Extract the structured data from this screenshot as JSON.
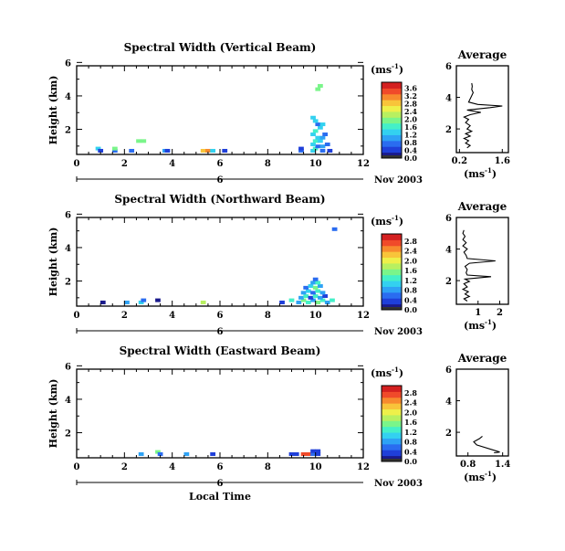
{
  "colors": {
    "colormap": [
      "#1a1a8c",
      "#1f3fd9",
      "#2a6cf0",
      "#2ea2f5",
      "#33d1f0",
      "#44f0c8",
      "#7af58a",
      "#b8f060",
      "#eef04a",
      "#f8c43a",
      "#f78a2e",
      "#f04a2a",
      "#d42020"
    ],
    "line": "#000000",
    "background": "#ffffff"
  },
  "xlabel": "Local Time",
  "chart_data": [
    {
      "type": "heatmap",
      "title": "Spectral Width (Vertical Beam)",
      "ylabel": "Height (km)",
      "xlim": [
        0,
        12
      ],
      "ylim": [
        0.5,
        5.8
      ],
      "xticks": [
        "0",
        "2",
        "4",
        "6",
        "8",
        "10",
        "12"
      ],
      "yticks": [
        "2",
        "4",
        "6"
      ],
      "date_label": "Nov 2003",
      "date_tick": "6",
      "colorbar": {
        "unit": "(ms",
        "exponent": "-1",
        "unit_close": ")",
        "ticks": [
          "0.0",
          "0.4",
          "0.8",
          "1.2",
          "1.6",
          "2.0",
          "2.4",
          "2.8",
          "3.2",
          "3.6"
        ],
        "range": [
          0,
          3.9
        ]
      },
      "cells": [
        {
          "t": 0.9,
          "h": 0.85,
          "v": 1.2
        },
        {
          "t": 1.0,
          "h": 0.72,
          "v": 0.4
        },
        {
          "t": 1.6,
          "h": 0.72,
          "v": 0.8
        },
        {
          "t": 1.6,
          "h": 0.85,
          "v": 1.8
        },
        {
          "t": 2.3,
          "h": 0.72,
          "v": 0.6
        },
        {
          "t": 2.6,
          "h": 1.3,
          "v": 2.0
        },
        {
          "t": 2.8,
          "h": 1.3,
          "v": 2.0
        },
        {
          "t": 3.7,
          "h": 0.72,
          "v": 1.0
        },
        {
          "t": 3.8,
          "h": 0.72,
          "v": 0.4
        },
        {
          "t": 5.3,
          "h": 0.72,
          "v": 2.8
        },
        {
          "t": 5.5,
          "h": 0.72,
          "v": 3.0
        },
        {
          "t": 5.7,
          "h": 0.72,
          "v": 1.2
        },
        {
          "t": 6.2,
          "h": 0.72,
          "v": 0.4
        },
        {
          "t": 9.4,
          "h": 0.72,
          "v": 0.8
        },
        {
          "t": 9.4,
          "h": 0.85,
          "v": 0.4
        },
        {
          "t": 9.9,
          "h": 0.72,
          "v": 1.2
        },
        {
          "t": 10.0,
          "h": 0.85,
          "v": 1.6
        },
        {
          "t": 10.1,
          "h": 0.98,
          "v": 0.8
        },
        {
          "t": 10.3,
          "h": 0.72,
          "v": 0.8
        },
        {
          "t": 10.3,
          "h": 0.98,
          "v": 1.0
        },
        {
          "t": 9.9,
          "h": 1.1,
          "v": 1.2
        },
        {
          "t": 10.0,
          "h": 1.3,
          "v": 1.6
        },
        {
          "t": 10.1,
          "h": 1.5,
          "v": 1.2
        },
        {
          "t": 9.9,
          "h": 1.7,
          "v": 1.2
        },
        {
          "t": 10.0,
          "h": 1.9,
          "v": 1.6
        },
        {
          "t": 10.2,
          "h": 1.3,
          "v": 1.4
        },
        {
          "t": 10.3,
          "h": 1.5,
          "v": 1.0
        },
        {
          "t": 10.4,
          "h": 1.7,
          "v": 0.8
        },
        {
          "t": 10.2,
          "h": 2.1,
          "v": 1.2
        },
        {
          "t": 10.1,
          "h": 2.3,
          "v": 0.8
        },
        {
          "t": 10.0,
          "h": 2.5,
          "v": 1.2
        },
        {
          "t": 9.9,
          "h": 2.7,
          "v": 1.2
        },
        {
          "t": 10.3,
          "h": 2.3,
          "v": 1.4
        },
        {
          "t": 10.5,
          "h": 1.1,
          "v": 0.8
        },
        {
          "t": 10.6,
          "h": 0.72,
          "v": 0.4
        },
        {
          "t": 10.2,
          "h": 4.6,
          "v": 1.8
        },
        {
          "t": 10.1,
          "h": 4.4,
          "v": 1.8
        }
      ],
      "profile": {
        "title": "Average",
        "xlabel": "(ms",
        "exponent": "-1",
        "xlabel_close": ")",
        "xticks": [
          "0.2",
          "1.6"
        ],
        "yticks": [
          "2",
          "4",
          "6"
        ],
        "xlim": [
          0.1,
          1.8
        ],
        "ylim": [
          0.5,
          6.0
        ],
        "points": [
          [
            0.45,
            0.8
          ],
          [
            0.55,
            0.95
          ],
          [
            0.4,
            1.1
          ],
          [
            0.5,
            1.25
          ],
          [
            0.35,
            1.4
          ],
          [
            0.55,
            1.55
          ],
          [
            0.4,
            1.7
          ],
          [
            0.6,
            1.85
          ],
          [
            0.45,
            2.0
          ],
          [
            0.55,
            2.2
          ],
          [
            0.4,
            2.4
          ],
          [
            0.5,
            2.6
          ],
          [
            0.35,
            2.75
          ],
          [
            0.55,
            2.9
          ],
          [
            0.9,
            3.05
          ],
          [
            0.45,
            3.2
          ],
          [
            1.2,
            3.35
          ],
          [
            1.6,
            3.45
          ],
          [
            0.8,
            3.55
          ],
          [
            0.5,
            3.7
          ],
          [
            0.55,
            3.9
          ],
          [
            0.6,
            4.1
          ],
          [
            0.65,
            4.3
          ],
          [
            0.6,
            4.5
          ],
          [
            0.62,
            4.7
          ],
          [
            0.6,
            4.9
          ]
        ]
      }
    },
    {
      "type": "heatmap",
      "title": "Spectral Width (Northward Beam)",
      "ylabel": "Height (km)",
      "xlim": [
        0,
        12
      ],
      "ylim": [
        0.5,
        5.8
      ],
      "xticks": [
        "0",
        "2",
        "4",
        "6",
        "8",
        "10",
        "12"
      ],
      "yticks": [
        "2",
        "4",
        "6"
      ],
      "date_label": "Nov 2003",
      "date_tick": "6",
      "colorbar": {
        "unit": "(ms",
        "exponent": "-1",
        "unit_close": ")",
        "ticks": [
          "0.0",
          "0.4",
          "0.8",
          "1.2",
          "1.6",
          "2.0",
          "2.4",
          "2.8"
        ],
        "range": [
          0,
          3.1
        ]
      },
      "cells": [
        {
          "t": 1.1,
          "h": 0.72,
          "v": 0.2
        },
        {
          "t": 2.1,
          "h": 0.72,
          "v": 0.8
        },
        {
          "t": 2.7,
          "h": 0.72,
          "v": 1.0
        },
        {
          "t": 2.8,
          "h": 0.85,
          "v": 0.6
        },
        {
          "t": 3.4,
          "h": 0.85,
          "v": 0.2
        },
        {
          "t": 5.3,
          "h": 0.72,
          "v": 1.8
        },
        {
          "t": 8.6,
          "h": 0.72,
          "v": 0.4
        },
        {
          "t": 9.0,
          "h": 0.85,
          "v": 1.2
        },
        {
          "t": 9.3,
          "h": 0.72,
          "v": 0.8
        },
        {
          "t": 9.5,
          "h": 0.85,
          "v": 1.6
        },
        {
          "t": 9.7,
          "h": 0.72,
          "v": 1.2
        },
        {
          "t": 9.9,
          "h": 0.85,
          "v": 0.8
        },
        {
          "t": 10.1,
          "h": 0.72,
          "v": 1.6
        },
        {
          "t": 10.3,
          "h": 0.85,
          "v": 1.2
        },
        {
          "t": 10.5,
          "h": 0.72,
          "v": 0.8
        },
        {
          "t": 10.7,
          "h": 0.85,
          "v": 1.2
        },
        {
          "t": 9.4,
          "h": 1.0,
          "v": 0.8
        },
        {
          "t": 9.6,
          "h": 1.1,
          "v": 1.2
        },
        {
          "t": 9.8,
          "h": 1.0,
          "v": 0.4
        },
        {
          "t": 10.0,
          "h": 1.1,
          "v": 1.2
        },
        {
          "t": 10.2,
          "h": 1.0,
          "v": 0.8
        },
        {
          "t": 10.4,
          "h": 1.1,
          "v": 0.4
        },
        {
          "t": 9.5,
          "h": 1.3,
          "v": 0.8
        },
        {
          "t": 9.7,
          "h": 1.4,
          "v": 1.0
        },
        {
          "t": 9.9,
          "h": 1.3,
          "v": 0.6
        },
        {
          "t": 10.1,
          "h": 1.4,
          "v": 1.2
        },
        {
          "t": 10.3,
          "h": 1.3,
          "v": 0.8
        },
        {
          "t": 9.6,
          "h": 1.6,
          "v": 0.6
        },
        {
          "t": 9.8,
          "h": 1.7,
          "v": 1.0
        },
        {
          "t": 10.0,
          "h": 1.6,
          "v": 1.6
        },
        {
          "t": 10.2,
          "h": 1.7,
          "v": 0.8
        },
        {
          "t": 9.9,
          "h": 1.9,
          "v": 0.8
        },
        {
          "t": 10.1,
          "h": 1.9,
          "v": 1.2
        },
        {
          "t": 10.0,
          "h": 2.1,
          "v": 0.6
        },
        {
          "t": 10.8,
          "h": 5.1,
          "v": 0.6
        }
      ],
      "profile": {
        "title": "Average",
        "xlabel": "(ms",
        "exponent": "-1",
        "xlabel_close": ")",
        "xticks": [
          "1",
          "2"
        ],
        "yticks": [
          "2",
          "4",
          "6"
        ],
        "xlim": [
          0.0,
          2.4
        ],
        "ylim": [
          0.5,
          6.0
        ],
        "points": [
          [
            0.5,
            0.7
          ],
          [
            0.35,
            0.85
          ],
          [
            0.6,
            1.0
          ],
          [
            0.4,
            1.15
          ],
          [
            0.55,
            1.3
          ],
          [
            0.3,
            1.45
          ],
          [
            0.5,
            1.6
          ],
          [
            0.35,
            1.8
          ],
          [
            0.6,
            1.95
          ],
          [
            0.4,
            2.1
          ],
          [
            1.6,
            2.25
          ],
          [
            0.5,
            2.35
          ],
          [
            0.45,
            2.5
          ],
          [
            0.5,
            2.7
          ],
          [
            0.4,
            2.9
          ],
          [
            0.6,
            3.1
          ],
          [
            1.8,
            3.25
          ],
          [
            0.5,
            3.4
          ],
          [
            0.45,
            3.6
          ],
          [
            0.35,
            3.8
          ],
          [
            0.5,
            4.0
          ],
          [
            0.3,
            4.2
          ],
          [
            0.45,
            4.4
          ],
          [
            0.3,
            4.6
          ],
          [
            0.4,
            4.8
          ],
          [
            0.3,
            5.0
          ],
          [
            0.35,
            5.2
          ]
        ]
      }
    },
    {
      "type": "heatmap",
      "title": "Spectral Width (Eastward Beam)",
      "ylabel": "Height (km)",
      "xlim": [
        0,
        12
      ],
      "ylim": [
        0.5,
        5.8
      ],
      "xticks": [
        "0",
        "2",
        "4",
        "6",
        "8",
        "10",
        "12"
      ],
      "yticks": [
        "2",
        "4",
        "6"
      ],
      "date_label": "Nov 2003",
      "date_tick": "6",
      "colorbar": {
        "unit": "(ms",
        "exponent": "-1",
        "unit_close": ")",
        "ticks": [
          "0.0",
          "0.4",
          "0.8",
          "1.2",
          "1.6",
          "2.0",
          "2.4",
          "2.8"
        ],
        "range": [
          0,
          3.1
        ]
      },
      "cells": [
        {
          "t": 2.7,
          "h": 0.72,
          "v": 0.8
        },
        {
          "t": 3.4,
          "h": 0.85,
          "v": 1.6
        },
        {
          "t": 3.5,
          "h": 0.72,
          "v": 0.6
        },
        {
          "t": 4.6,
          "h": 0.72,
          "v": 0.8
        },
        {
          "t": 5.7,
          "h": 0.72,
          "v": 0.4
        },
        {
          "t": 9.0,
          "h": 0.72,
          "v": 0.4
        },
        {
          "t": 9.2,
          "h": 0.72,
          "v": 0.4
        },
        {
          "t": 9.5,
          "h": 0.72,
          "v": 2.8
        },
        {
          "t": 9.7,
          "h": 0.72,
          "v": 2.8
        },
        {
          "t": 9.9,
          "h": 0.72,
          "v": 0.6
        },
        {
          "t": 10.1,
          "h": 0.72,
          "v": 0.4
        },
        {
          "t": 9.9,
          "h": 0.9,
          "v": 0.4
        },
        {
          "t": 10.1,
          "h": 0.9,
          "v": 0.4
        }
      ],
      "profile": {
        "title": "Average",
        "xlabel": "(ms",
        "exponent": "-1",
        "xlabel_close": ")",
        "xticks": [
          "0.8",
          "1.4"
        ],
        "yticks": [
          "2",
          "4",
          "6"
        ],
        "xlim": [
          0.6,
          1.5
        ],
        "ylim": [
          0.5,
          6.0
        ],
        "points": [
          [
            1.25,
            0.7
          ],
          [
            1.3,
            0.72
          ],
          [
            1.35,
            0.75
          ],
          [
            0.95,
            1.2
          ],
          [
            0.9,
            1.4
          ],
          [
            1.0,
            1.6
          ],
          [
            1.05,
            1.75
          ]
        ]
      }
    }
  ]
}
